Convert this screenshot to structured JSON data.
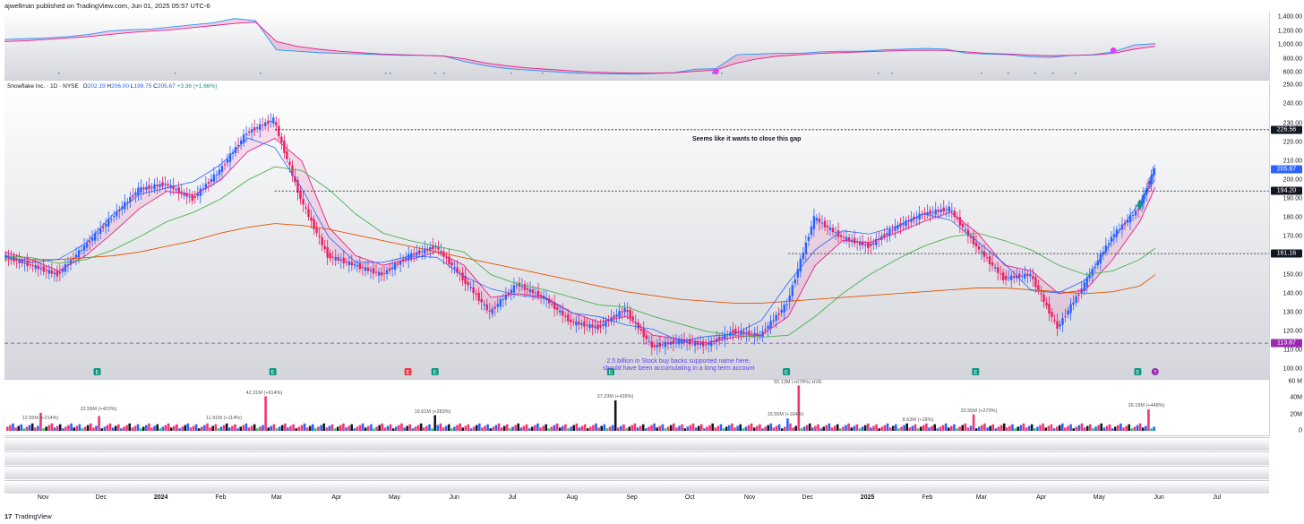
{
  "header": {
    "published": "ajwellman published on TradingView.com, Jun 01, 2025 05:57 UTC-6"
  },
  "footer": {
    "logo_glyph": "17",
    "brand": "TradingView"
  },
  "top_pane": {
    "y_ticks": [
      "1,400.00",
      "1,200.00",
      "1,000.00",
      "800.00",
      "600.00"
    ],
    "series": [
      {
        "name": "",
        "color": "#2196f3",
        "values": [
          1080,
          1090,
          1100,
          1120,
          1150,
          1200,
          1220,
          1230,
          1260,
          1290,
          1320,
          1380,
          1350,
          930,
          910,
          890,
          880,
          870,
          860,
          850,
          850,
          840,
          760,
          700,
          660,
          640,
          620,
          600,
          590,
          585,
          580,
          590,
          600,
          650,
          660,
          860,
          870,
          880,
          880,
          900,
          910,
          910,
          930,
          940,
          950,
          940,
          880,
          870,
          860,
          830,
          820,
          850,
          860,
          900,
          1000,
          1020
        ]
      },
      {
        "name": "",
        "color": "#e91e8c",
        "values": [
          1050,
          1060,
          1080,
          1100,
          1120,
          1150,
          1180,
          1200,
          1220,
          1250,
          1280,
          1310,
          1330,
          1050,
          980,
          940,
          910,
          890,
          870,
          860,
          850,
          840,
          800,
          740,
          700,
          670,
          650,
          630,
          610,
          600,
          595,
          595,
          600,
          620,
          640,
          740,
          800,
          840,
          860,
          880,
          890,
          900,
          910,
          920,
          925,
          920,
          900,
          880,
          870,
          855,
          845,
          850,
          855,
          880,
          940,
          980
        ]
      }
    ]
  },
  "main_pane": {
    "legend": {
      "name": "Snowflake Inc. · 1D · NYSE",
      "o_label": "O",
      "o": "202.19",
      "h_label": "H",
      "h": "206.00",
      "l_label": "L",
      "l": "199.75",
      "c_label": "C",
      "c": "205.67",
      "change": "+3.36 (+1.66%)"
    },
    "y_ticks": [
      "250.00",
      "240.00",
      "230.00",
      "220.00",
      "210.00",
      "200.00",
      "190.00",
      "180.00",
      "170.00",
      "160.00",
      "150.00",
      "140.00",
      "130.00",
      "120.00",
      "110.00",
      "100.00"
    ],
    "price_tags": [
      {
        "value": "226.56",
        "color": "#131722"
      },
      {
        "value": "205.67",
        "color": "#2962ff"
      },
      {
        "value": "194.20",
        "color": "#131722"
      },
      {
        "value": "161.16",
        "color": "#131722"
      },
      {
        "value": "113.87",
        "color": "#9c27b0"
      }
    ],
    "annotation_gap": "Seems like it wants to close this gap",
    "annotation_buyback_1": "2.5 billion in Stock buy backs supported name here,",
    "annotation_buyback_2": "should have been accumulating in a long term account",
    "earnings_glyph": "E",
    "dividend_glyph": "?"
  },
  "volume_pane": {
    "y_ticks": [
      "60 M",
      "40M",
      "20M",
      "0"
    ],
    "labels": [
      "12.55M (+214%)",
      "22.59M (+420%)",
      "11.91M (+114%)",
      "42.31M (+614%)",
      "19.61M (+283%)",
      "37.23M (+435%)",
      "55.13M (+678%) HVE",
      "15.55M (+164%)",
      "8.53M (+18%)",
      "20.55M (+270%)",
      "26.19M (+448%)"
    ]
  },
  "x_axis": {
    "labels": [
      {
        "text": "Nov",
        "bold": false
      },
      {
        "text": "Dec",
        "bold": false
      },
      {
        "text": "2024",
        "bold": true
      },
      {
        "text": "Feb",
        "bold": false
      },
      {
        "text": "Mar",
        "bold": false
      },
      {
        "text": "Apr",
        "bold": false
      },
      {
        "text": "May",
        "bold": false
      },
      {
        "text": "Jun",
        "bold": false
      },
      {
        "text": "Jul",
        "bold": false
      },
      {
        "text": "Aug",
        "bold": false
      },
      {
        "text": "Sep",
        "bold": false
      },
      {
        "text": "Oct",
        "bold": false
      },
      {
        "text": "Nov",
        "bold": false
      },
      {
        "text": "Dec",
        "bold": false
      },
      {
        "text": "2025",
        "bold": true
      },
      {
        "text": "Feb",
        "bold": false
      },
      {
        "text": "Mar",
        "bold": false
      },
      {
        "text": "Apr",
        "bold": false
      },
      {
        "text": "May",
        "bold": false
      },
      {
        "text": "Jun",
        "bold": false
      },
      {
        "text": "Jul",
        "bold": false
      }
    ]
  },
  "chart_data": {
    "type": "line",
    "title": "",
    "xlabel": "",
    "ylabel": "",
    "ylim": [
      95,
      252
    ],
    "x": [
      "2023-10-12",
      "2023-10-26",
      "2023-11-09",
      "2023-11-23",
      "2023-12-07",
      "2023-12-21",
      "2024-01-04",
      "2024-01-18",
      "2024-02-01",
      "2024-02-15",
      "2024-02-29",
      "2024-03-14",
      "2024-03-28",
      "2024-04-11",
      "2024-04-25",
      "2024-05-09",
      "2024-05-23",
      "2024-06-06",
      "2024-06-20",
      "2024-07-04",
      "2024-07-18",
      "2024-08-01",
      "2024-08-15",
      "2024-08-29",
      "2024-09-12",
      "2024-09-26",
      "2024-10-10",
      "2024-10-24",
      "2024-11-07",
      "2024-11-21",
      "2024-12-05",
      "2024-12-19",
      "2025-01-02",
      "2025-01-16",
      "2025-01-30",
      "2025-02-13",
      "2025-02-27",
      "2025-03-13",
      "2025-03-27",
      "2025-04-10",
      "2025-04-24",
      "2025-05-08",
      "2025-05-22",
      "2025-05-30"
    ],
    "series": [
      {
        "name": "",
        "color": "#2962ff",
        "values": [
          160,
          155,
          150,
          165,
          180,
          195,
          198,
          190,
          205,
          225,
          232,
          190,
          160,
          155,
          150,
          160,
          165,
          148,
          130,
          145,
          138,
          125,
          122,
          132,
          112,
          115,
          113,
          120,
          118,
          135,
          180,
          170,
          165,
          175,
          182,
          185,
          165,
          148,
          150,
          122,
          145,
          170,
          185,
          205.67
        ]
      },
      {
        "name": "",
        "color": "#e91e8c",
        "values": [
          162,
          158,
          152,
          160,
          172,
          185,
          194,
          192,
          200,
          215,
          222,
          210,
          175,
          160,
          155,
          158,
          162,
          155,
          138,
          140,
          138,
          130,
          125,
          128,
          118,
          116,
          114,
          117,
          118,
          128,
          155,
          168,
          167,
          172,
          178,
          183,
          172,
          155,
          152,
          140,
          142,
          158,
          178,
          196
        ]
      },
      {
        "name": "",
        "color": "#4caf50",
        "values": [
          160,
          159,
          156,
          158,
          163,
          170,
          178,
          183,
          190,
          200,
          207,
          205,
          195,
          182,
          172,
          168,
          165,
          162,
          150,
          145,
          142,
          138,
          134,
          133,
          128,
          124,
          120,
          118,
          117,
          118,
          128,
          140,
          150,
          158,
          165,
          170,
          172,
          168,
          163,
          155,
          150,
          152,
          158,
          164
        ]
      },
      {
        "name": "",
        "color": "#e65100",
        "values": [
          158,
          158,
          158,
          159,
          160,
          162,
          165,
          168,
          172,
          175,
          177,
          176,
          174,
          171,
          168,
          165,
          162,
          159,
          156,
          153,
          150,
          147,
          144,
          141,
          139,
          137,
          136,
          135,
          135,
          136,
          137,
          138,
          139,
          140,
          141,
          142,
          143,
          143,
          142,
          141,
          140,
          141,
          144,
          150
        ]
      }
    ]
  }
}
